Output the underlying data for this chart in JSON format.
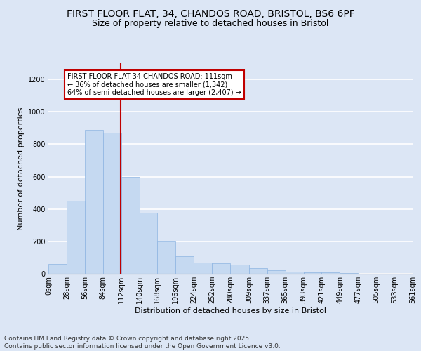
{
  "title_line1": "FIRST FLOOR FLAT, 34, CHANDOS ROAD, BRISTOL, BS6 6PF",
  "title_line2": "Size of property relative to detached houses in Bristol",
  "xlabel": "Distribution of detached houses by size in Bristol",
  "ylabel": "Number of detached properties",
  "bar_color": "#c5d9f1",
  "bar_edge_color": "#8db4e2",
  "background_color": "#dce6f5",
  "fig_background_color": "#dce6f5",
  "grid_color": "#ffffff",
  "bins": [
    0,
    28,
    56,
    84,
    112,
    140,
    168,
    196,
    224,
    252,
    280,
    309,
    337,
    365,
    393,
    421,
    449,
    477,
    505,
    533,
    561
  ],
  "counts": [
    62,
    450,
    890,
    870,
    600,
    375,
    200,
    110,
    70,
    65,
    55,
    35,
    20,
    15,
    10,
    10,
    5,
    2,
    2,
    2
  ],
  "tick_labels": [
    "0sqm",
    "28sqm",
    "56sqm",
    "84sqm",
    "112sqm",
    "140sqm",
    "168sqm",
    "196sqm",
    "224sqm",
    "252sqm",
    "280sqm",
    "309sqm",
    "337sqm",
    "365sqm",
    "393sqm",
    "421sqm",
    "449sqm",
    "477sqm",
    "505sqm",
    "533sqm",
    "561sqm"
  ],
  "vline_x": 111,
  "vline_color": "#c00000",
  "annotation_text": "FIRST FLOOR FLAT 34 CHANDOS ROAD: 111sqm\n← 36% of detached houses are smaller (1,342)\n64% of semi-detached houses are larger (2,407) →",
  "annotation_box_color": "#ffffff",
  "annotation_box_edge": "#c00000",
  "ylim": [
    0,
    1300
  ],
  "yticks": [
    0,
    200,
    400,
    600,
    800,
    1000,
    1200
  ],
  "footer_text": "Contains HM Land Registry data © Crown copyright and database right 2025.\nContains public sector information licensed under the Open Government Licence v3.0.",
  "title_fontsize": 10,
  "subtitle_fontsize": 9,
  "axis_fontsize": 8,
  "tick_fontsize": 7,
  "footer_fontsize": 6.5,
  "annotation_fontsize": 7
}
